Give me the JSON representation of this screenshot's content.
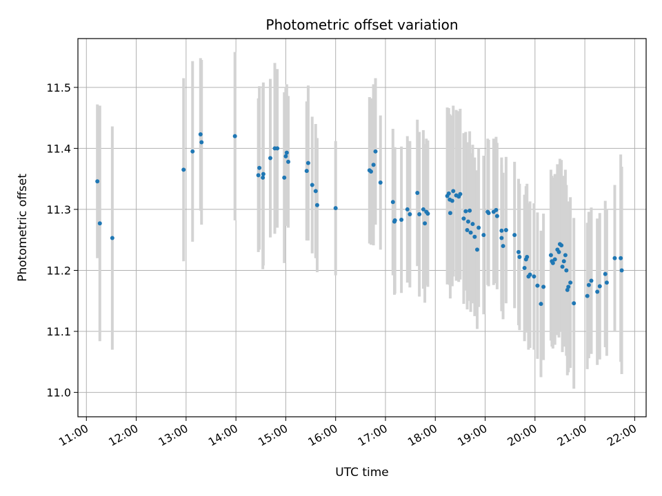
{
  "chart_data": {
    "type": "scatter",
    "title": "Photometric offset variation",
    "xlabel": "UTC time",
    "ylabel": "Photometric offset",
    "x_unit": "hours UTC",
    "xlim": [
      10.83,
      22.23
    ],
    "ylim": [
      10.96,
      11.58
    ],
    "x_ticks": [
      {
        "v": 11,
        "label": "11:00"
      },
      {
        "v": 12,
        "label": "12:00"
      },
      {
        "v": 13,
        "label": "13:00"
      },
      {
        "v": 14,
        "label": "14:00"
      },
      {
        "v": 15,
        "label": "15:00"
      },
      {
        "v": 16,
        "label": "16:00"
      },
      {
        "v": 17,
        "label": "17:00"
      },
      {
        "v": 18,
        "label": "18:00"
      },
      {
        "v": 19,
        "label": "19:00"
      },
      {
        "v": 20,
        "label": "20:00"
      },
      {
        "v": 21,
        "label": "21:00"
      },
      {
        "v": 22,
        "label": "22:00"
      }
    ],
    "y_ticks": [
      {
        "v": 11.0,
        "label": "11.0"
      },
      {
        "v": 11.1,
        "label": "11.1"
      },
      {
        "v": 11.2,
        "label": "11.2"
      },
      {
        "v": 11.3,
        "label": "11.3"
      },
      {
        "v": 11.4,
        "label": "11.4"
      },
      {
        "v": 11.5,
        "label": "11.5"
      }
    ],
    "grid": true,
    "colors": {
      "point": "#1f77b4",
      "errorbar": "#d3d3d3",
      "grid": "#b0b0b0"
    },
    "points": [
      [
        11.22,
        11.346,
        0.126
      ],
      [
        11.27,
        11.277,
        0.193
      ],
      [
        11.52,
        11.253,
        0.183
      ],
      [
        12.95,
        11.365,
        0.15
      ],
      [
        13.13,
        11.395,
        0.148
      ],
      [
        13.29,
        11.423,
        0.125
      ],
      [
        13.31,
        11.41,
        0.135
      ],
      [
        13.98,
        11.42,
        0.138
      ],
      [
        14.45,
        11.356,
        0.126
      ],
      [
        14.47,
        11.368,
        0.134
      ],
      [
        14.54,
        11.352,
        0.15
      ],
      [
        14.55,
        11.358,
        0.15
      ],
      [
        14.69,
        11.384,
        0.13
      ],
      [
        14.78,
        11.4,
        0.14
      ],
      [
        14.83,
        11.4,
        0.13
      ],
      [
        14.97,
        11.352,
        0.14
      ],
      [
        15.0,
        11.387,
        0.114
      ],
      [
        15.02,
        11.393,
        0.112
      ],
      [
        15.05,
        11.378,
        0.108
      ],
      [
        15.42,
        11.363,
        0.114
      ],
      [
        15.45,
        11.376,
        0.127
      ],
      [
        15.53,
        11.34,
        0.112
      ],
      [
        15.6,
        11.33,
        0.11
      ],
      [
        15.63,
        11.307,
        0.11
      ],
      [
        16.0,
        11.302,
        0.11
      ],
      [
        16.68,
        11.364,
        0.12
      ],
      [
        16.71,
        11.362,
        0.12
      ],
      [
        16.76,
        11.373,
        0.132
      ],
      [
        16.8,
        11.395,
        0.12
      ],
      [
        16.9,
        11.344,
        0.11
      ],
      [
        17.15,
        11.312,
        0.12
      ],
      [
        17.18,
        11.28,
        0.12
      ],
      [
        17.19,
        11.282,
        0.12
      ],
      [
        17.32,
        11.283,
        0.12
      ],
      [
        17.44,
        11.3,
        0.12
      ],
      [
        17.49,
        11.292,
        0.12
      ],
      [
        17.64,
        11.327,
        0.12
      ],
      [
        17.68,
        11.292,
        0.135
      ],
      [
        17.76,
        11.3,
        0.13
      ],
      [
        17.79,
        11.277,
        0.13
      ],
      [
        17.82,
        11.296,
        0.12
      ],
      [
        17.85,
        11.293,
        0.12
      ],
      [
        18.24,
        11.322,
        0.145
      ],
      [
        18.27,
        11.326,
        0.14
      ],
      [
        18.29,
        11.316,
        0.14
      ],
      [
        18.3,
        11.294,
        0.14
      ],
      [
        18.34,
        11.314,
        0.14
      ],
      [
        18.36,
        11.33,
        0.14
      ],
      [
        18.42,
        11.323,
        0.14
      ],
      [
        18.47,
        11.321,
        0.14
      ],
      [
        18.5,
        11.325,
        0.14
      ],
      [
        18.57,
        11.285,
        0.14
      ],
      [
        18.61,
        11.297,
        0.13
      ],
      [
        18.64,
        11.266,
        0.13
      ],
      [
        18.66,
        11.28,
        0.13
      ],
      [
        18.69,
        11.298,
        0.13
      ],
      [
        18.71,
        11.262,
        0.13
      ],
      [
        18.75,
        11.276,
        0.13
      ],
      [
        18.79,
        11.255,
        0.13
      ],
      [
        18.84,
        11.234,
        0.13
      ],
      [
        18.87,
        11.27,
        0.13
      ],
      [
        18.97,
        11.258,
        0.13
      ],
      [
        19.05,
        11.296,
        0.12
      ],
      [
        19.07,
        11.294,
        0.12
      ],
      [
        19.17,
        11.296,
        0.12
      ],
      [
        19.22,
        11.299,
        0.12
      ],
      [
        19.24,
        11.289,
        0.12
      ],
      [
        19.33,
        11.265,
        0.12
      ],
      [
        19.33,
        11.253,
        0.12
      ],
      [
        19.36,
        11.24,
        0.12
      ],
      [
        19.42,
        11.266,
        0.12
      ],
      [
        19.59,
        11.258,
        0.12
      ],
      [
        19.67,
        11.23,
        0.12
      ],
      [
        19.69,
        11.222,
        0.12
      ],
      [
        19.79,
        11.204,
        0.12
      ],
      [
        19.82,
        11.218,
        0.12
      ],
      [
        19.84,
        11.222,
        0.12
      ],
      [
        19.87,
        11.19,
        0.12
      ],
      [
        19.9,
        11.193,
        0.12
      ],
      [
        19.98,
        11.19,
        0.12
      ],
      [
        20.05,
        11.175,
        0.12
      ],
      [
        20.12,
        11.145,
        0.12
      ],
      [
        20.17,
        11.173,
        0.12
      ],
      [
        20.32,
        11.225,
        0.14
      ],
      [
        20.34,
        11.215,
        0.14
      ],
      [
        20.36,
        11.212,
        0.14
      ],
      [
        20.4,
        11.218,
        0.14
      ],
      [
        20.45,
        11.234,
        0.14
      ],
      [
        20.48,
        11.23,
        0.14
      ],
      [
        20.5,
        11.243,
        0.14
      ],
      [
        20.53,
        11.241,
        0.14
      ],
      [
        20.55,
        11.206,
        0.14
      ],
      [
        20.58,
        11.215,
        0.14
      ],
      [
        20.61,
        11.225,
        0.14
      ],
      [
        20.63,
        11.2,
        0.14
      ],
      [
        20.65,
        11.168,
        0.14
      ],
      [
        20.67,
        11.173,
        0.14
      ],
      [
        20.71,
        11.18,
        0.14
      ],
      [
        20.78,
        11.146,
        0.14
      ],
      [
        21.05,
        11.158,
        0.12
      ],
      [
        21.08,
        11.176,
        0.12
      ],
      [
        21.13,
        11.183,
        0.12
      ],
      [
        21.25,
        11.165,
        0.12
      ],
      [
        21.3,
        11.174,
        0.12
      ],
      [
        21.41,
        11.194,
        0.12
      ],
      [
        21.44,
        11.18,
        0.12
      ],
      [
        21.6,
        11.22,
        0.12
      ],
      [
        21.72,
        11.22,
        0.17
      ],
      [
        21.74,
        11.2,
        0.17
      ]
    ]
  }
}
